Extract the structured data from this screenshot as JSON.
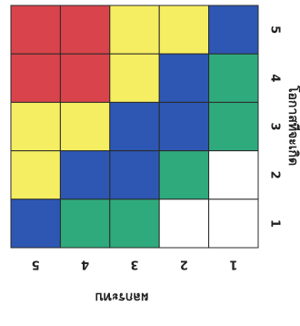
{
  "chart_data": {
    "type": "heatmap",
    "title": "",
    "xlabel": "ผลกระทบ",
    "ylabel": "โอกาสที่จะเกิด",
    "x_categories": [
      "5",
      "4",
      "3",
      "2",
      "1"
    ],
    "y_categories": [
      "5",
      "4",
      "3",
      "2",
      "1"
    ],
    "colors": {
      "red": "#d9434b",
      "yellow": "#f6ee62",
      "blue": "#2e57b3",
      "green": "#2faa7c",
      "white": "#ffffff",
      "grid": "#2a2a2a"
    },
    "cells": [
      [
        "red",
        "red",
        "yellow",
        "yellow",
        "blue"
      ],
      [
        "red",
        "red",
        "yellow",
        "blue",
        "green"
      ],
      [
        "yellow",
        "yellow",
        "blue",
        "blue",
        "green"
      ],
      [
        "yellow",
        "blue",
        "blue",
        "green",
        "white"
      ],
      [
        "blue",
        "green",
        "green",
        "white",
        "white"
      ]
    ]
  }
}
